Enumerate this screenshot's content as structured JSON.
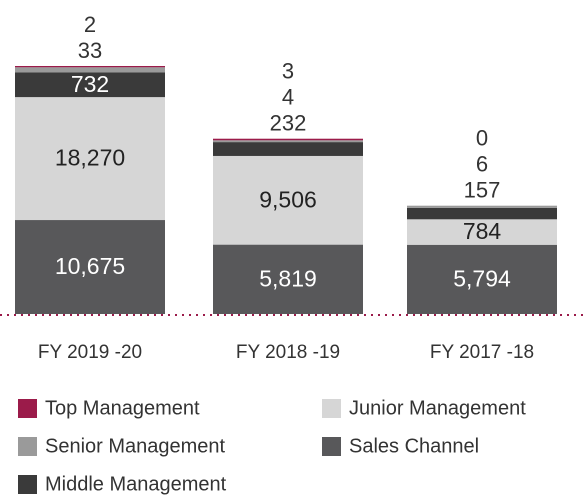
{
  "chart_data": {
    "type": "stacked_bar",
    "categories": [
      "FY 2019 -20",
      "FY 2018 -19",
      "FY 2017 -18"
    ],
    "series": [
      {
        "name": "Sales Channel",
        "color": "#58585a",
        "values": [
          10675,
          5819,
          5794
        ],
        "value_labels": [
          "10,675",
          "5,819",
          "5,794"
        ]
      },
      {
        "name": "Junior Management",
        "color": "#d6d6d6",
        "values": [
          18270,
          9506,
          784
        ],
        "value_labels": [
          "18,270",
          "9,506",
          "784"
        ]
      },
      {
        "name": "Middle Management",
        "color": "#3a3a3a",
        "values": [
          732,
          232,
          157
        ],
        "value_labels": [
          "732",
          "232",
          "157"
        ]
      },
      {
        "name": "Senior Management",
        "color": "#9a9a9a",
        "values": [
          33,
          4,
          6
        ],
        "value_labels": [
          "33",
          "4",
          "6"
        ]
      },
      {
        "name": "Top Management",
        "color": "#9b1b4a",
        "values": [
          2,
          3,
          0
        ],
        "value_labels": [
          "2",
          "3",
          "0"
        ]
      }
    ]
  }
}
